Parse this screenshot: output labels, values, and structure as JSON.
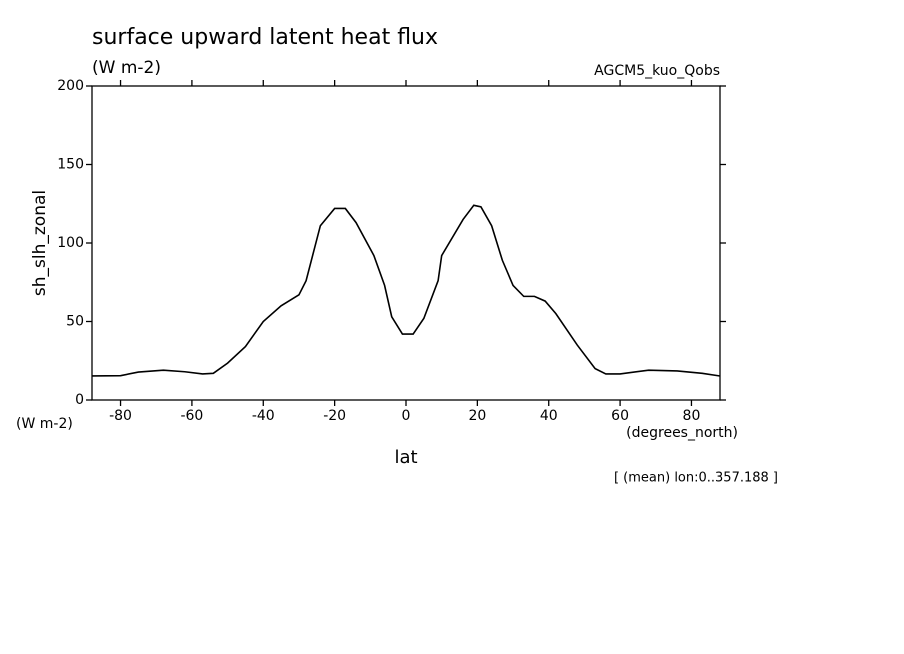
{
  "chart_data": {
    "type": "line",
    "title": "surface upward latent heat flux",
    "subtitle": "(W m-2)",
    "dataset": "AGCM5_kuo_Qobs",
    "ylabel": "sh_slh_zonal",
    "yunits": "(W m-2)",
    "xlabel": "lat",
    "xunits": "(degrees_north)",
    "note": "[ (mean) lon:0..357.188 ]",
    "xlim": [
      -88,
      88
    ],
    "ylim": [
      0,
      200
    ],
    "xticks": [
      -80,
      -60,
      -40,
      -20,
      0,
      20,
      40,
      60,
      80
    ],
    "yticks": [
      0,
      50,
      100,
      150,
      200
    ],
    "color": "#000000",
    "x": [
      -88,
      -80,
      -75,
      -68,
      -62,
      -57,
      -54,
      -50,
      -45,
      -40,
      -35,
      -30,
      -28,
      -24,
      -20,
      -17,
      -14,
      -9,
      -6,
      -4,
      -1,
      2,
      5,
      9,
      10,
      16,
      19,
      21,
      24,
      27,
      30,
      33,
      36,
      39,
      42,
      48,
      53,
      56,
      60,
      68,
      76,
      83,
      88
    ],
    "values": [
      15.3,
      15.5,
      17.8,
      19,
      18,
      16.6,
      17,
      23.5,
      34,
      50,
      60,
      67,
      76,
      111,
      122,
      122,
      113,
      92,
      73,
      53,
      42,
      42,
      52,
      76,
      92,
      115,
      124,
      123,
      111,
      89,
      73,
      66,
      66,
      63,
      55,
      35,
      20,
      16.6,
      16.6,
      19,
      18.5,
      17,
      15.3
    ]
  }
}
